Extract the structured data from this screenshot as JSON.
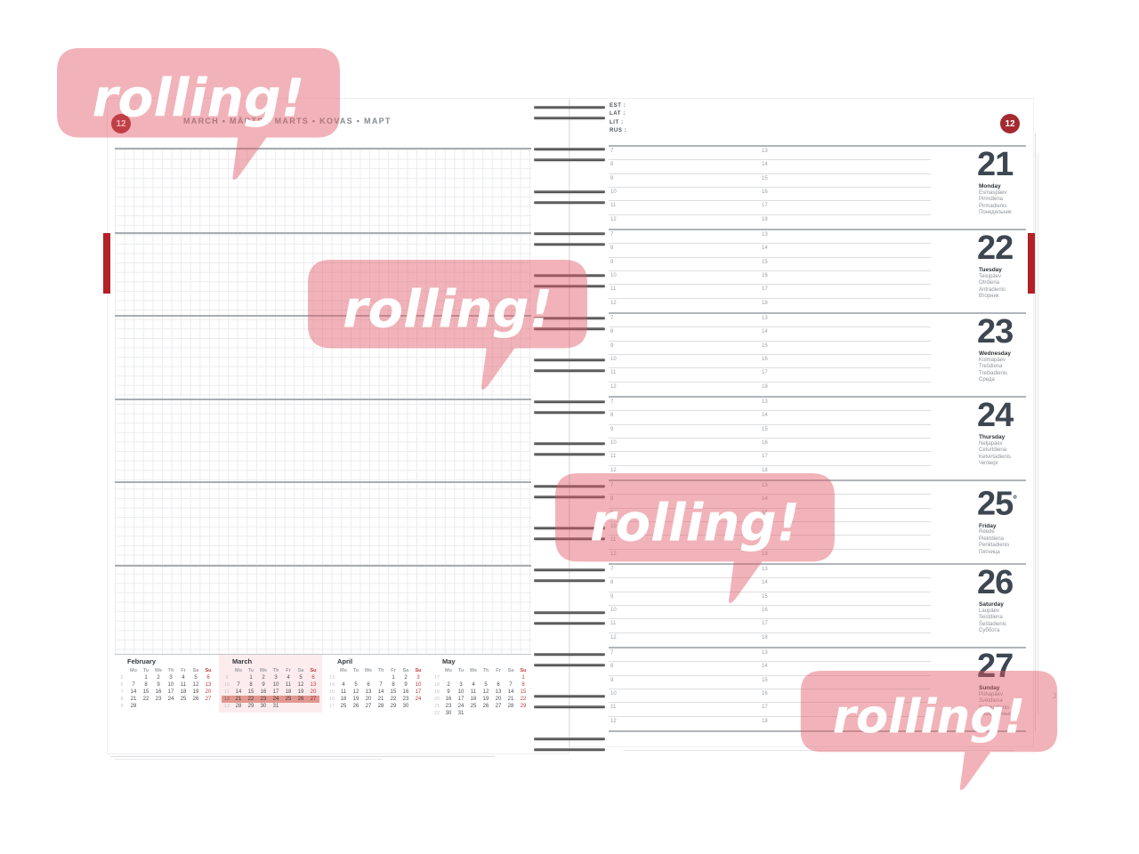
{
  "brand": {
    "watermark_text": "rolling!"
  },
  "colors": {
    "accent_red": "#A5292E",
    "bookmark_red": "#B32027",
    "sunday_red": "#C23B3D",
    "highlight_salmon": "#E09890",
    "march_bg": "#FCECED",
    "watermark_pink": "rgba(224,90,102,0.46)"
  },
  "left_page": {
    "week_badge": "12",
    "month_title": "MARCH • MÄRTS • MARTS • KOVAS • МАРТ",
    "day_headers": [
      "Mo",
      "Tu",
      "We",
      "Th",
      "Fr",
      "Sa",
      "Su"
    ],
    "mini_calendars": [
      {
        "title": "February",
        "current": false,
        "highlight_week": null,
        "weeks": [
          {
            "num": "5",
            "days": [
              "",
              "1",
              "2",
              "3",
              "4",
              "5",
              "6"
            ]
          },
          {
            "num": "6",
            "days": [
              "7",
              "8",
              "9",
              "10",
              "11",
              "12",
              "13"
            ]
          },
          {
            "num": "7",
            "days": [
              "14",
              "15",
              "16",
              "17",
              "18",
              "19",
              "20"
            ]
          },
          {
            "num": "8",
            "days": [
              "21",
              "22",
              "23",
              "24",
              "25",
              "26",
              "27"
            ]
          },
          {
            "num": "9",
            "days": [
              "28",
              "",
              "",
              "",
              "",
              "",
              ""
            ]
          }
        ]
      },
      {
        "title": "March",
        "current": true,
        "highlight_week": 3,
        "weeks": [
          {
            "num": "9",
            "days": [
              "",
              "1",
              "2",
              "3",
              "4",
              "5",
              "6"
            ]
          },
          {
            "num": "10",
            "days": [
              "7",
              "8",
              "9",
              "10",
              "11",
              "12",
              "13"
            ]
          },
          {
            "num": "11",
            "days": [
              "14",
              "15",
              "16",
              "17",
              "18",
              "19",
              "20"
            ]
          },
          {
            "num": "12",
            "days": [
              "21",
              "22",
              "23",
              "24",
              "25",
              "26",
              "27"
            ]
          },
          {
            "num": "13",
            "days": [
              "28",
              "29",
              "30",
              "31",
              "",
              "",
              ""
            ]
          }
        ]
      },
      {
        "title": "April",
        "current": false,
        "highlight_week": null,
        "weeks": [
          {
            "num": "13",
            "days": [
              "",
              "",
              "",
              "",
              "1",
              "2",
              "3"
            ]
          },
          {
            "num": "14",
            "days": [
              "4",
              "5",
              "6",
              "7",
              "8",
              "9",
              "10"
            ]
          },
          {
            "num": "15",
            "days": [
              "11",
              "12",
              "13",
              "14",
              "15",
              "16",
              "17"
            ]
          },
          {
            "num": "16",
            "days": [
              "18",
              "19",
              "20",
              "21",
              "22",
              "23",
              "24"
            ]
          },
          {
            "num": "17",
            "days": [
              "25",
              "26",
              "27",
              "28",
              "29",
              "30",
              ""
            ]
          }
        ]
      },
      {
        "title": "May",
        "current": false,
        "highlight_week": null,
        "weeks": [
          {
            "num": "17",
            "days": [
              "",
              "",
              "",
              "",
              "",
              "",
              "1"
            ]
          },
          {
            "num": "18",
            "days": [
              "2",
              "3",
              "4",
              "5",
              "6",
              "7",
              "8"
            ]
          },
          {
            "num": "19",
            "days": [
              "9",
              "10",
              "11",
              "12",
              "13",
              "14",
              "15"
            ]
          },
          {
            "num": "20",
            "days": [
              "16",
              "17",
              "18",
              "19",
              "20",
              "21",
              "22"
            ]
          },
          {
            "num": "21",
            "days": [
              "23",
              "24",
              "25",
              "26",
              "27",
              "28",
              "29"
            ]
          },
          {
            "num": "22",
            "days": [
              "30",
              "31",
              "",
              "",
              "",
              "",
              ""
            ]
          }
        ]
      }
    ]
  },
  "right_page": {
    "week_badge": "12",
    "legend": [
      "EST :",
      "LAT :",
      "LIT :",
      "RUS :"
    ],
    "hours_morning": [
      "7",
      "8",
      "9",
      "10",
      "11",
      "12"
    ],
    "hours_afternoon": [
      "13",
      "14",
      "15",
      "16",
      "17",
      "18"
    ],
    "days": [
      {
        "date": "21",
        "mark": "",
        "moon": "",
        "names": [
          "Monday",
          "Esmaspäev",
          "Pirmdiena",
          "Pirmadienis",
          "Понедельник"
        ]
      },
      {
        "date": "22",
        "mark": "",
        "moon": "",
        "names": [
          "Tuesday",
          "Teisipäev",
          "Otrdiena",
          "Antradienis",
          "Вторник"
        ]
      },
      {
        "date": "23",
        "mark": "",
        "moon": "",
        "names": [
          "Wednesday",
          "Kolmapäev",
          "Trešdiena",
          "Trečiadienis",
          "Среда"
        ]
      },
      {
        "date": "24",
        "mark": "",
        "moon": "",
        "names": [
          "Thursday",
          "Neljapäev",
          "Ceturtdiena",
          "Ketvirtadienis",
          "Четверг"
        ]
      },
      {
        "date": "25",
        "mark": "°",
        "moon": "",
        "names": [
          "Friday",
          "Reede",
          "Piektdiena",
          "Penktadienis",
          "Пятница"
        ]
      },
      {
        "date": "26",
        "mark": "",
        "moon": "",
        "names": [
          "Saturday",
          "Laupäev",
          "Sestdiena",
          "Šeštadienis",
          "Суббота"
        ]
      },
      {
        "date": "27",
        "mark": "",
        "moon": "☽",
        "names": [
          "Sunday",
          "Pühapäev",
          "Svētdiena",
          "Sekmadienis",
          "Воскресенье"
        ]
      }
    ]
  }
}
